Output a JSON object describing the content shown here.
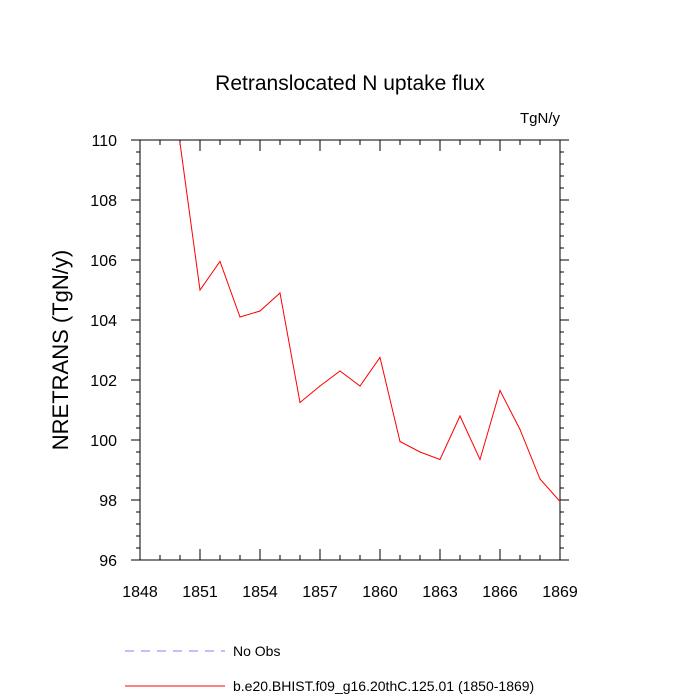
{
  "chart_data": {
    "type": "line",
    "title": "Retranslocated N uptake flux",
    "units": "TgN/y",
    "xlabel": "",
    "ylabel": "NRETRANS  (TgN/y)",
    "xlim": [
      1848,
      1869
    ],
    "ylim": [
      96,
      110
    ],
    "xticks": [
      1848,
      1851,
      1854,
      1857,
      1860,
      1863,
      1866,
      1869
    ],
    "yticks": [
      96,
      98,
      100,
      102,
      104,
      106,
      108,
      110
    ],
    "grid": false,
    "legend": "bottom",
    "series": [
      {
        "name": "No Obs",
        "color": "#8080ff",
        "style": "dashed",
        "x": [],
        "values": []
      },
      {
        "name": "b.e20.BHIST.f09_g16.20thC.125.01 (1850-1869)",
        "color": "#ff0000",
        "style": "solid",
        "x": [
          1850,
          1851,
          1852,
          1853,
          1854,
          1855,
          1856,
          1857,
          1858,
          1859,
          1860,
          1861,
          1862,
          1863,
          1864,
          1865,
          1866,
          1867,
          1868,
          1869
        ],
        "values": [
          109.9,
          105.0,
          105.95,
          104.1,
          104.3,
          104.9,
          101.25,
          101.8,
          102.3,
          101.8,
          102.75,
          99.95,
          99.6,
          99.35,
          100.8,
          99.35,
          101.65,
          100.35,
          98.7,
          97.95
        ]
      }
    ]
  }
}
